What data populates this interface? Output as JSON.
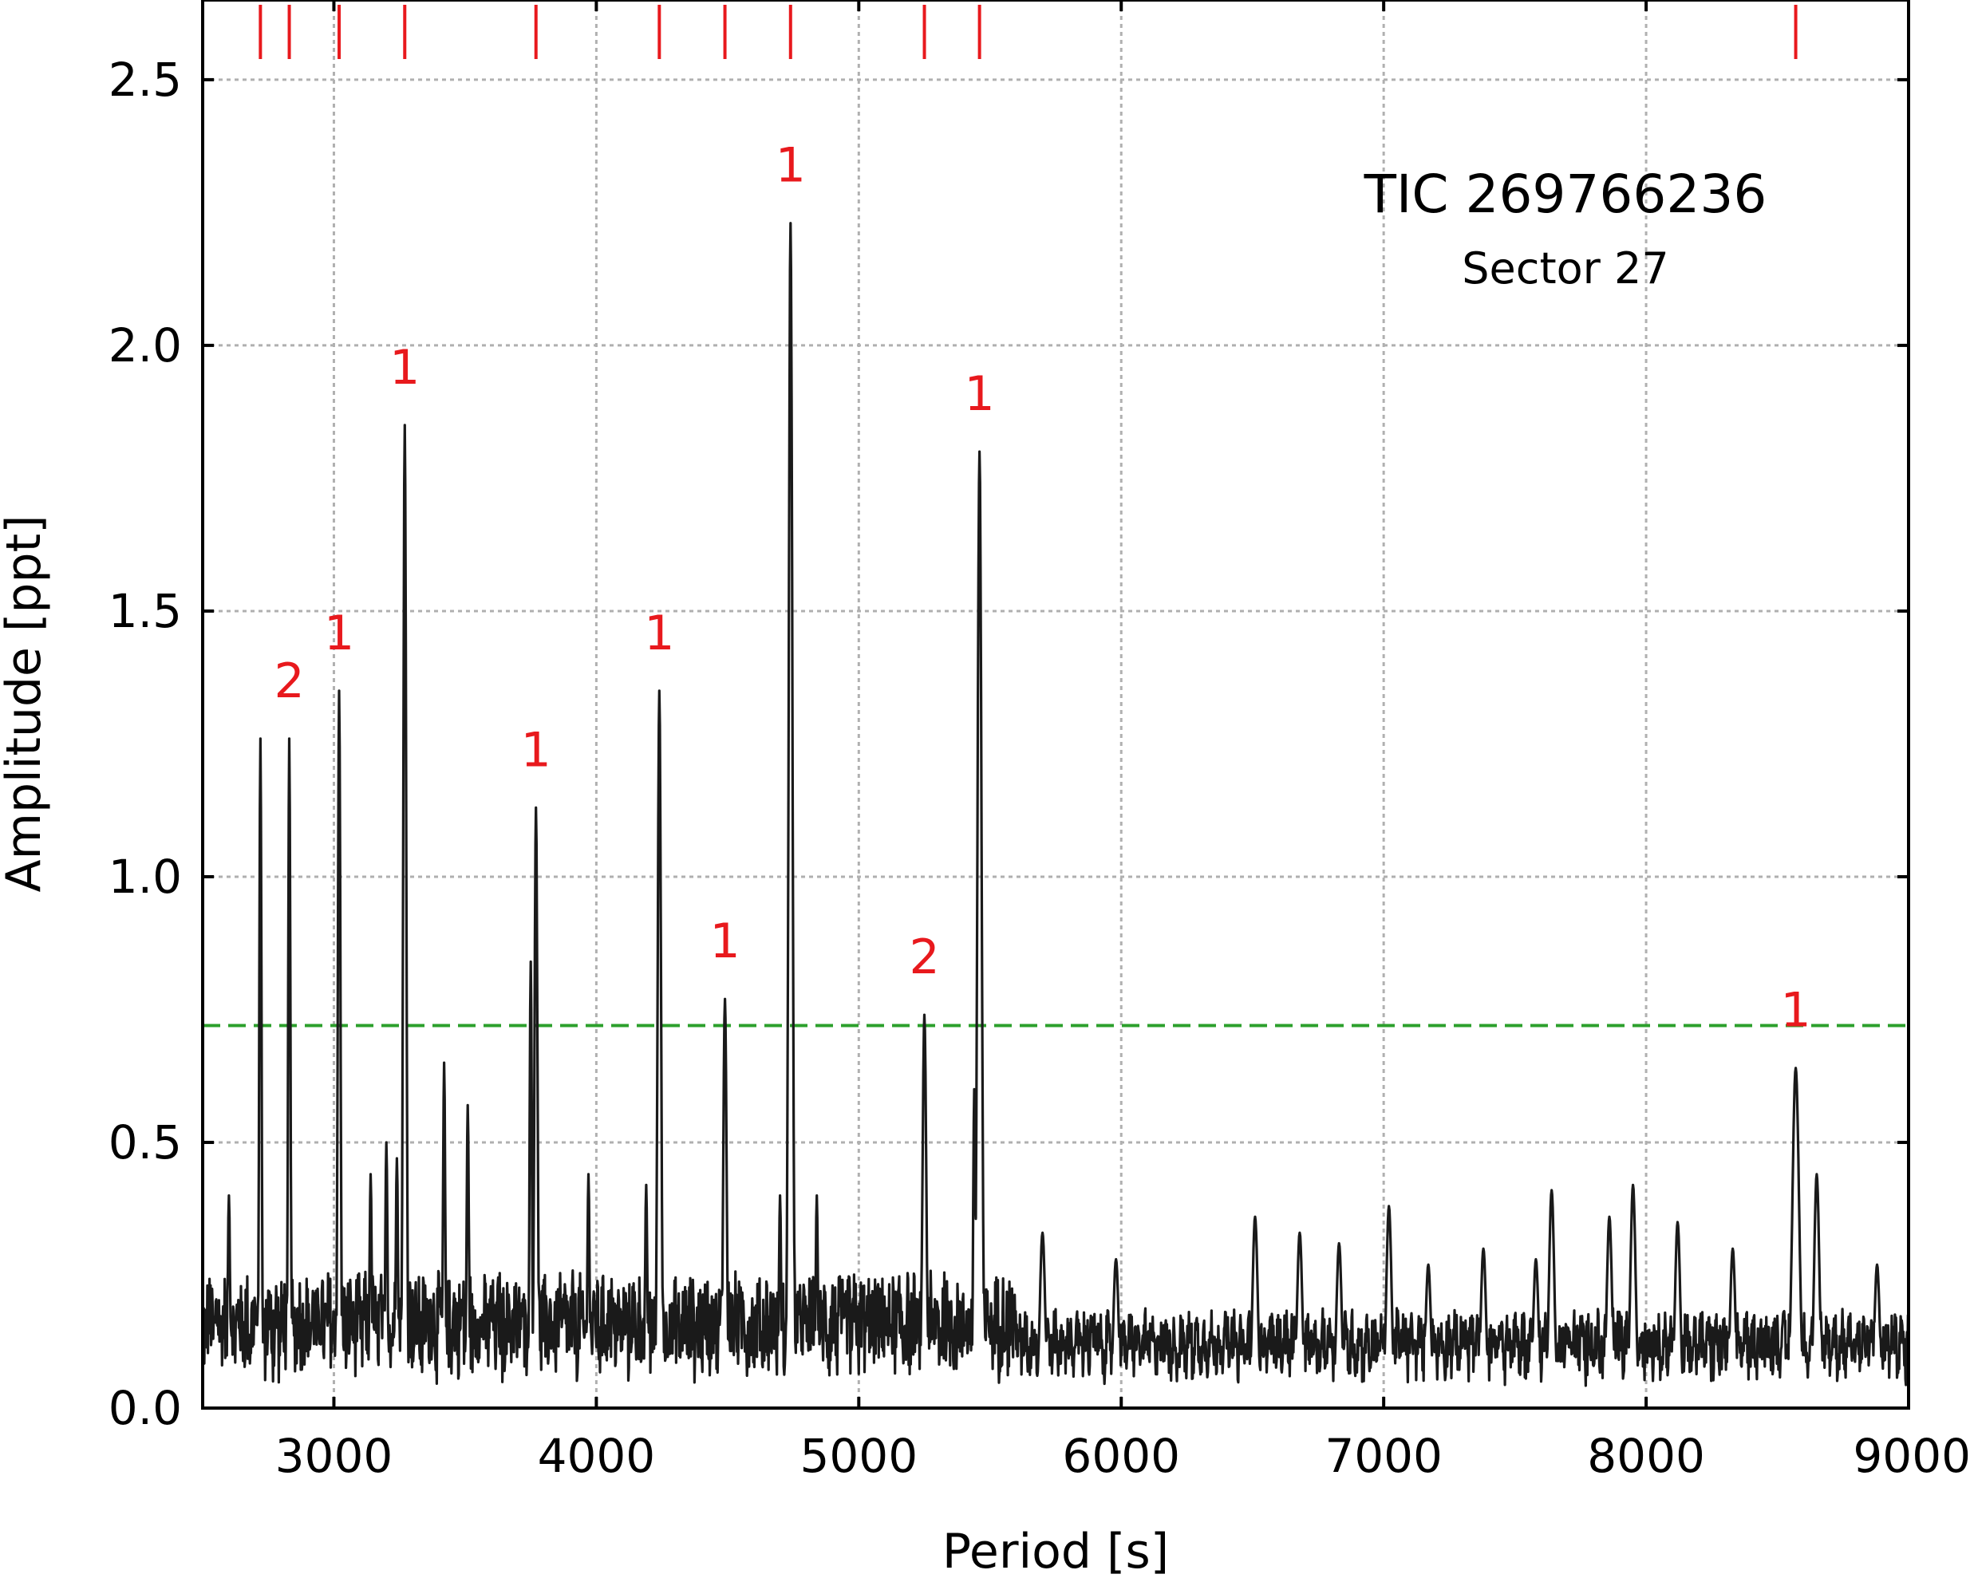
{
  "chart_data": {
    "type": "line",
    "title": "",
    "xlabel": "Period [s]",
    "ylabel": "Amplitude [ppt]",
    "xlim": [
      2500,
      9000
    ],
    "ylim": [
      0.0,
      2.65
    ],
    "xticks": [
      3000,
      4000,
      5000,
      6000,
      7000,
      8000,
      9000
    ],
    "xtick_labels": [
      "3000",
      "4000",
      "5000",
      "6000",
      "7000",
      "8000",
      "9000"
    ],
    "yticks": [
      0.0,
      0.5,
      1.0,
      1.5,
      2.0,
      2.5
    ],
    "ytick_labels": [
      "0.0",
      "0.5",
      "1.0",
      "1.5",
      "2.0",
      "2.5"
    ],
    "grid": true,
    "legend": "none",
    "annotations": {
      "object": "TIC 269766236",
      "sector": "Sector 27"
    },
    "threshold": {
      "value": 0.72,
      "style": "dashed",
      "color": "#2ca02c"
    },
    "peaks": [
      {
        "period": 2720,
        "amplitude": 1.26,
        "mode_label": "",
        "width": 6
      },
      {
        "period": 2830,
        "amplitude": 1.26,
        "mode_label": "2",
        "width": 6
      },
      {
        "period": 3020,
        "amplitude": 1.35,
        "mode_label": "1",
        "width": 7
      },
      {
        "period": 3270,
        "amplitude": 1.85,
        "mode_label": "1",
        "width": 8
      },
      {
        "period": 3770,
        "amplitude": 1.13,
        "mode_label": "1",
        "width": 8
      },
      {
        "period": 4240,
        "amplitude": 1.35,
        "mode_label": "1",
        "width": 9
      },
      {
        "period": 4490,
        "amplitude": 0.77,
        "mode_label": "1",
        "width": 9
      },
      {
        "period": 4740,
        "amplitude": 2.23,
        "mode_label": "1",
        "width": 10
      },
      {
        "period": 5250,
        "amplitude": 0.74,
        "mode_label": "2",
        "width": 10
      },
      {
        "period": 5460,
        "amplitude": 1.8,
        "mode_label": "1",
        "width": 11
      },
      {
        "period": 8570,
        "amplitude": 0.64,
        "mode_label": "1",
        "width": 18
      }
    ],
    "marker_periods": [
      2720,
      2830,
      3020,
      3270,
      3770,
      4240,
      4490,
      4740,
      5250,
      5460,
      8570
    ],
    "noise_bumps": [
      {
        "period": 2600,
        "amplitude": 0.4
      },
      {
        "period": 3140,
        "amplitude": 0.44
      },
      {
        "period": 3200,
        "amplitude": 0.5
      },
      {
        "period": 3240,
        "amplitude": 0.47
      },
      {
        "period": 3420,
        "amplitude": 0.65
      },
      {
        "period": 3510,
        "amplitude": 0.57
      },
      {
        "period": 3750,
        "amplitude": 0.84
      },
      {
        "period": 3970,
        "amplitude": 0.44
      },
      {
        "period": 4190,
        "amplitude": 0.42
      },
      {
        "period": 4700,
        "amplitude": 0.4
      },
      {
        "period": 4840,
        "amplitude": 0.4
      },
      {
        "period": 5440,
        "amplitude": 0.6
      },
      {
        "period": 5700,
        "amplitude": 0.33
      },
      {
        "period": 5980,
        "amplitude": 0.28
      },
      {
        "period": 6510,
        "amplitude": 0.36
      },
      {
        "period": 6680,
        "amplitude": 0.33
      },
      {
        "period": 6830,
        "amplitude": 0.31
      },
      {
        "period": 7020,
        "amplitude": 0.38
      },
      {
        "period": 7170,
        "amplitude": 0.27
      },
      {
        "period": 7380,
        "amplitude": 0.3
      },
      {
        "period": 7580,
        "amplitude": 0.28
      },
      {
        "period": 7640,
        "amplitude": 0.41
      },
      {
        "period": 7860,
        "amplitude": 0.36
      },
      {
        "period": 7950,
        "amplitude": 0.42
      },
      {
        "period": 8120,
        "amplitude": 0.35
      },
      {
        "period": 8330,
        "amplitude": 0.3
      },
      {
        "period": 8650,
        "amplitude": 0.44
      },
      {
        "period": 8880,
        "amplitude": 0.27
      }
    ],
    "colors": {
      "spectrum": "#1a1a1a",
      "mode_markers": "#e8191d",
      "grid": "#b0b0b0"
    }
  }
}
